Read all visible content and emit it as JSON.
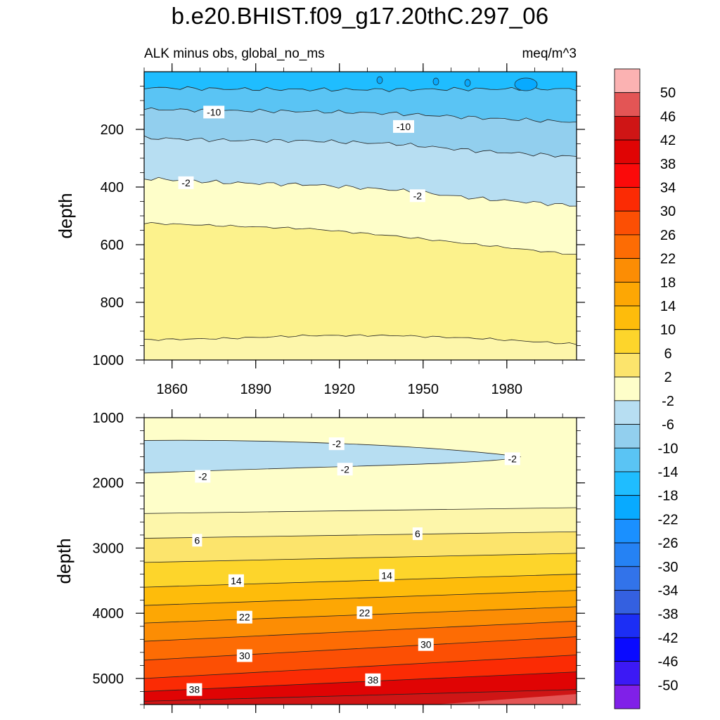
{
  "title": "b.e20.BHIST.f09_g17.20thC.297_06",
  "chart_data": [
    {
      "type": "contour",
      "panel": "upper",
      "left_label": "ALK minus obs, global_no_ms",
      "right_label": "meq/m^3",
      "ylabel": "depth",
      "xlabel": "",
      "xlim": [
        1850,
        2005
      ],
      "ylim": [
        1000,
        0
      ],
      "x_ticks": [
        1860,
        1890,
        1920,
        1950,
        1980
      ],
      "y_ticks": [
        200,
        400,
        600,
        800,
        1000
      ],
      "x_samples": [
        1850,
        1880,
        1910,
        1940,
        1970,
        2005
      ],
      "levels": [
        {
          "level": -14,
          "depths": [
            55,
            60,
            62,
            62,
            60,
            60
          ]
        },
        {
          "level": -10,
          "depths": [
            130,
            135,
            138,
            145,
            160,
            175
          ]
        },
        {
          "level": -6,
          "depths": [
            230,
            238,
            240,
            250,
            275,
            295
          ]
        },
        {
          "level": -2,
          "depths": [
            370,
            385,
            392,
            410,
            440,
            465
          ]
        },
        {
          "level": 2,
          "depths": [
            525,
            535,
            545,
            570,
            600,
            635
          ]
        },
        {
          "level": 6,
          "depths": [
            930,
            925,
            915,
            915,
            925,
            945
          ]
        }
      ],
      "bands": [
        {
          "from": -18,
          "to": -14,
          "color": "#1FBDFF"
        },
        {
          "from": -14,
          "to": -10,
          "color": "#5AC4F4"
        },
        {
          "from": -10,
          "to": -6,
          "color": "#92CFEE"
        },
        {
          "from": -6,
          "to": -2,
          "color": "#B7DEF2"
        },
        {
          "from": -2,
          "to": 2,
          "color": "#FEFEC9"
        },
        {
          "from": 2,
          "to": 6,
          "color": "#FCF28C"
        },
        {
          "from": 2,
          "to": 6,
          "color": "#FDF6AA"
        }
      ],
      "contour_labels": [
        {
          "text": "-10",
          "x": 1875,
          "y": 140
        },
        {
          "text": "-10",
          "x": 1943,
          "y": 190
        },
        {
          "text": "-2",
          "x": 1865,
          "y": 385
        },
        {
          "text": "-2",
          "x": 1948,
          "y": 430
        }
      ]
    },
    {
      "type": "contour",
      "panel": "lower",
      "ylabel": "depth",
      "xlabel": "",
      "xlim": [
        1850,
        2005
      ],
      "ylim": [
        5400,
        1000
      ],
      "y_ticks": [
        1000,
        2000,
        3000,
        4000,
        5000
      ],
      "x_samples": [
        1850,
        2005
      ],
      "lens": {
        "level": -2,
        "color": "#B7DEF2",
        "top": 1350,
        "bottom": 1850,
        "end_x": 1985,
        "tip_y": 1600
      },
      "levels": [
        {
          "level": 2,
          "depths": [
            2470,
            2380
          ]
        },
        {
          "level": 6,
          "depths": [
            2850,
            2750
          ]
        },
        {
          "level": 10,
          "depths": [
            3220,
            3080
          ]
        },
        {
          "level": 14,
          "depths": [
            3600,
            3400
          ]
        },
        {
          "level": 18,
          "depths": [
            3880,
            3650
          ]
        },
        {
          "level": 22,
          "depths": [
            4150,
            3900
          ]
        },
        {
          "level": 26,
          "depths": [
            4430,
            4120
          ]
        },
        {
          "level": 30,
          "depths": [
            4720,
            4360
          ]
        },
        {
          "level": 34,
          "depths": [
            5000,
            4640
          ]
        },
        {
          "level": 38,
          "depths": [
            5200,
            4900
          ]
        },
        {
          "level": 42,
          "depths": [
            5350,
            5170
          ]
        }
      ],
      "bands_colors": [
        "#FEFEC9",
        "#FDF6AA",
        "#FCE46C",
        "#FDD52B",
        "#FEBC0B",
        "#FDA704",
        "#FC8D04",
        "#FD6C04",
        "#FC4F04",
        "#FB2B04",
        "#E00404",
        "#CF1515",
        "#E35555"
      ],
      "contour_labels": [
        {
          "text": "-2",
          "x": 1919,
          "y": 1400
        },
        {
          "text": "-2",
          "x": 1922,
          "y": 1790
        },
        {
          "text": "-2",
          "x": 1871,
          "y": 1900
        },
        {
          "text": "-2",
          "x": 1982,
          "y": 1630
        },
        {
          "text": "6",
          "x": 1869,
          "y": 2880
        },
        {
          "text": "6",
          "x": 1948,
          "y": 2780
        },
        {
          "text": "14",
          "x": 1883,
          "y": 3500
        },
        {
          "text": "14",
          "x": 1937,
          "y": 3420
        },
        {
          "text": "22",
          "x": 1886,
          "y": 4060
        },
        {
          "text": "22",
          "x": 1929,
          "y": 3990
        },
        {
          "text": "30",
          "x": 1886,
          "y": 4650
        },
        {
          "text": "30",
          "x": 1951,
          "y": 4480
        },
        {
          "text": "38",
          "x": 1868,
          "y": 5170
        },
        {
          "text": "38",
          "x": 1932,
          "y": 5020
        }
      ]
    }
  ],
  "colorbar": {
    "labels": [
      "50",
      "46",
      "42",
      "38",
      "34",
      "30",
      "26",
      "22",
      "18",
      "14",
      "10",
      "6",
      "2",
      "-2",
      "-6",
      "-10",
      "-14",
      "-18",
      "-22",
      "-26",
      "-30",
      "-34",
      "-38",
      "-42",
      "-46",
      "-50"
    ],
    "colors": [
      "#FBB2B2",
      "#E35555",
      "#CF1515",
      "#E00404",
      "#FB0A0A",
      "#FB2B04",
      "#FC4F04",
      "#FD6C04",
      "#FC8D04",
      "#FDA704",
      "#FEBC0B",
      "#FDD52B",
      "#FCE46C",
      "#FEFEC9",
      "#B7DEF2",
      "#92CFEE",
      "#5AC4F4",
      "#1FBDFF",
      "#08AAFF",
      "#1A90FF",
      "#2582F4",
      "#3273EA",
      "#3460E0",
      "#1C2EF5",
      "#0A0AFF",
      "#3C19F5",
      "#8020E8"
    ]
  }
}
